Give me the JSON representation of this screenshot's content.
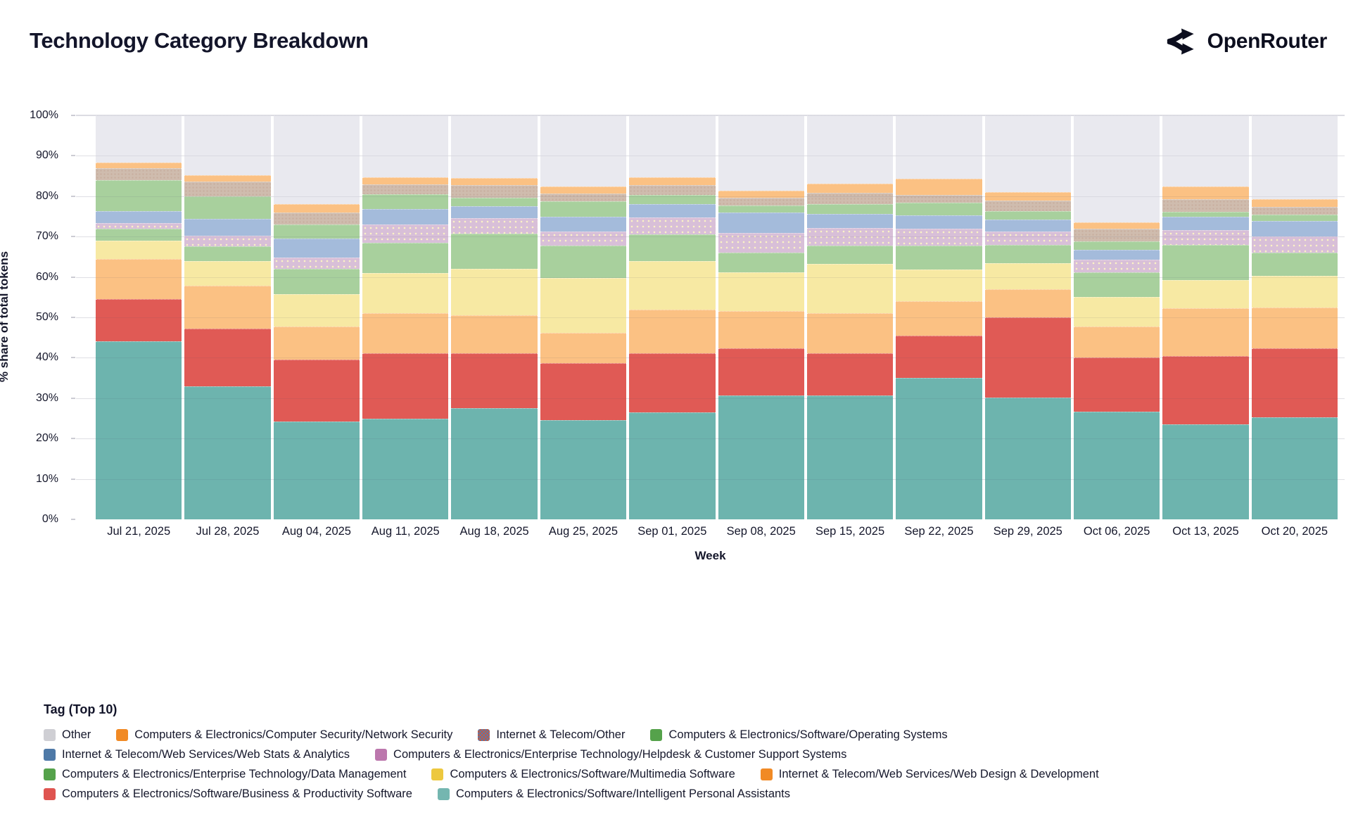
{
  "header": {
    "title": "Technology Category Breakdown",
    "brand": "OpenRouter"
  },
  "chart_data": {
    "type": "bar",
    "stacked": true,
    "normalized_percent": true,
    "title": "Technology Category Breakdown",
    "xlabel": "Week",
    "ylabel": "% share of total tokens",
    "ylim": [
      0,
      100
    ],
    "y_ticks": [
      "0%",
      "10%",
      "20%",
      "30%",
      "40%",
      "50%",
      "60%",
      "70%",
      "80%",
      "90%",
      "100%"
    ],
    "grid": true,
    "categories": [
      "Jul 21, 2025",
      "Jul 28, 2025",
      "Aug 04, 2025",
      "Aug 11, 2025",
      "Aug 18, 2025",
      "Aug 25, 2025",
      "Sep 01, 2025",
      "Sep 08, 2025",
      "Sep 15, 2025",
      "Sep 22, 2025",
      "Sep 29, 2025",
      "Oct 06, 2025",
      "Oct 13, 2025",
      "Oct 20, 2025"
    ],
    "stack_order_note": "series listed bottom-to-top; values are % share per week",
    "series": [
      {
        "key": "ipa",
        "name": "Computers & Electronics/Software/Intelligent Personal Assistants",
        "fill": "#6db4ae",
        "values": [
          44.0,
          33.0,
          24.2,
          25.0,
          27.5,
          24.5,
          26.5,
          30.7,
          30.7,
          35.0,
          30.2,
          26.6,
          23.6,
          25.2
        ]
      },
      {
        "key": "business",
        "name": "Computers & Electronics/Software/Business & Productivity Software",
        "fill": "#e05a55",
        "values": [
          10.5,
          14.3,
          15.3,
          16.2,
          13.6,
          14.1,
          14.7,
          11.6,
          10.4,
          10.4,
          19.8,
          13.4,
          16.8,
          17.2
        ]
      },
      {
        "key": "webdesign",
        "name": "Internet & Telecom/Web Services/Web Design & Development",
        "fill": "#fbc183",
        "values": [
          10.0,
          10.5,
          8.2,
          9.9,
          9.4,
          7.6,
          10.7,
          9.3,
          9.9,
          8.6,
          7.0,
          7.7,
          11.9,
          10.0
        ]
      },
      {
        "key": "multimedia",
        "name": "Computers & Electronics/Software/Multimedia Software",
        "fill": "#f7e9a3",
        "values": [
          4.5,
          6.2,
          8.0,
          9.9,
          11.5,
          13.6,
          12.1,
          9.6,
          12.2,
          7.8,
          6.4,
          7.3,
          6.9,
          7.8
        ]
      },
      {
        "key": "datamgmt",
        "name": "Computers & Electronics/Enterprise Technology/Data Management",
        "fill": "#a8d09d",
        "values": [
          3.0,
          3.6,
          6.3,
          7.4,
          8.8,
          7.9,
          6.5,
          4.8,
          4.6,
          5.9,
          4.6,
          6.2,
          8.8,
          5.8
        ]
      },
      {
        "key": "helpdesk",
        "name": "Computers & Electronics/Enterprise Technology/Helpdesk & Customer Support Systems",
        "fill": "#d8bfd8",
        "values": [
          1.3,
          2.7,
          2.8,
          4.6,
          3.8,
          3.6,
          4.2,
          5.0,
          4.4,
          4.2,
          3.2,
          3.1,
          3.6,
          4.1
        ]
      },
      {
        "key": "webstats",
        "name": "Internet & Telecom/Web Services/Web Stats & Analytics",
        "fill": "#a4bbdb",
        "values": [
          3.0,
          4.1,
          4.7,
          3.8,
          2.9,
          3.7,
          3.4,
          5.0,
          3.5,
          3.4,
          3.0,
          2.5,
          3.4,
          3.8
        ]
      },
      {
        "key": "os",
        "name": "Computers & Electronics/Software/Operating Systems",
        "fill": "#a8d09d",
        "values": [
          7.7,
          5.5,
          3.5,
          3.7,
          2.2,
          3.7,
          2.2,
          1.7,
          2.3,
          3.1,
          2.2,
          2.0,
          1.2,
          1.5
        ]
      },
      {
        "key": "telecom_other",
        "name": "Internet & Telecom/Other",
        "fill": "#cfbcae",
        "values": [
          3.0,
          3.8,
          3.0,
          2.5,
          3.0,
          2.0,
          2.4,
          1.9,
          2.8,
          2.0,
          2.5,
          3.1,
          3.1,
          1.9
        ]
      },
      {
        "key": "netsec",
        "name": "Computers & Electronics/Computer Security/Network Security",
        "fill": "#fbc183",
        "values": [
          1.3,
          1.5,
          2.0,
          1.7,
          1.8,
          1.7,
          1.9,
          1.8,
          2.4,
          4.0,
          2.1,
          1.6,
          3.1,
          1.9
        ]
      },
      {
        "key": "other",
        "name": "Other",
        "fill": "#e9e9ef",
        "values": [
          11.7,
          14.8,
          22.0,
          15.3,
          15.5,
          17.6,
          15.4,
          18.6,
          16.8,
          15.6,
          19.0,
          26.5,
          17.6,
          20.8
        ]
      }
    ]
  },
  "legend": {
    "title": "Tag (Top 10)",
    "swatches": {
      "other": "#cfcfd4",
      "netsec": "#f18a25",
      "telecom_other": "checker",
      "os": "#55a24b",
      "webstats": "#4e79a7",
      "helpdesk": "#bc77ad",
      "datamgmt": "#55a24b",
      "multimedia": "#edc83e",
      "webdesign": "#f18a25",
      "business": "#df5450",
      "ipa": "#74b6b0"
    },
    "rows": [
      [
        "other",
        "netsec",
        "telecom_other",
        "os"
      ],
      [
        "webstats",
        "helpdesk"
      ],
      [
        "datamgmt",
        "multimedia",
        "webdesign"
      ],
      [
        "business",
        "ipa"
      ]
    ]
  }
}
